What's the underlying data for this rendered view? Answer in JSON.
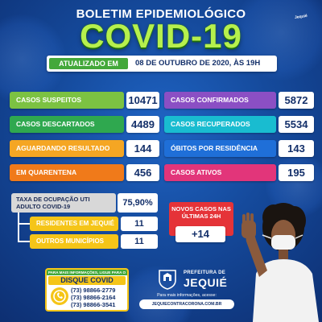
{
  "header": {
    "brand_mark": "Jequié",
    "top_title": "BOLETIM EPIDEMIOLÓGICO",
    "main_title": "COVID-19"
  },
  "update": {
    "tag": "ATUALIZADO EM",
    "date": "08 DE OUTUBRO DE 2020, ÀS 19H"
  },
  "stats_left": [
    {
      "label": "CASOS SUSPEITOS",
      "value": "10471",
      "color": "#7cc242"
    },
    {
      "label": "CASOS DESCARTADOS",
      "value": "4489",
      "color": "#2fa84f"
    },
    {
      "label": "AGUARDANDO RESULTADO",
      "value": "144",
      "color": "#f5a623"
    },
    {
      "label": "EM QUARENTENA",
      "value": "456",
      "color": "#f07a1a"
    }
  ],
  "stats_right": [
    {
      "label": "CASOS CONFIRMADOS",
      "value": "5872",
      "color": "#8b4fc4"
    },
    {
      "label": "CASOS RECUPERADOS",
      "value": "5534",
      "color": "#19bcd0"
    },
    {
      "label": "ÓBITOS POR RESIDÊNCIA",
      "value": "143",
      "color": "#1f6fd8"
    },
    {
      "label": "CASOS ATIVOS",
      "value": "195",
      "color": "#e2357a"
    }
  ],
  "uti": {
    "label": "TAXA DE OCUPAÇÃO UTI ADULTO COVID-19",
    "value": "75,90%",
    "sub": [
      {
        "label": "RESIDENTES EM JEQUIÉ",
        "value": "11"
      },
      {
        "label": "OUTROS MUNICÍPIOS",
        "value": "11"
      }
    ]
  },
  "new_cases": {
    "label": "NOVOS CASOS NAS ÚLTIMAS 24H",
    "value": "+14"
  },
  "contact": {
    "head": "PARA MAIS INFORMAÇÕES, LIGUE PARA O",
    "title": "DISQUE COVID",
    "numbers": [
      "(73) 98866-2779",
      "(73) 98866-2164",
      "(73) 98866-3541"
    ]
  },
  "prefeitura": {
    "small": "PREFEITURA DE",
    "big": "JEQUIÉ",
    "info": "Para mais informações, acesse:",
    "site": "JEQUIECONTRACORONA.COM.BR"
  },
  "colors": {
    "background": "#154a9c",
    "title_green": "#b6f04d",
    "yellow": "#f5c518",
    "red": "#e53338"
  }
}
